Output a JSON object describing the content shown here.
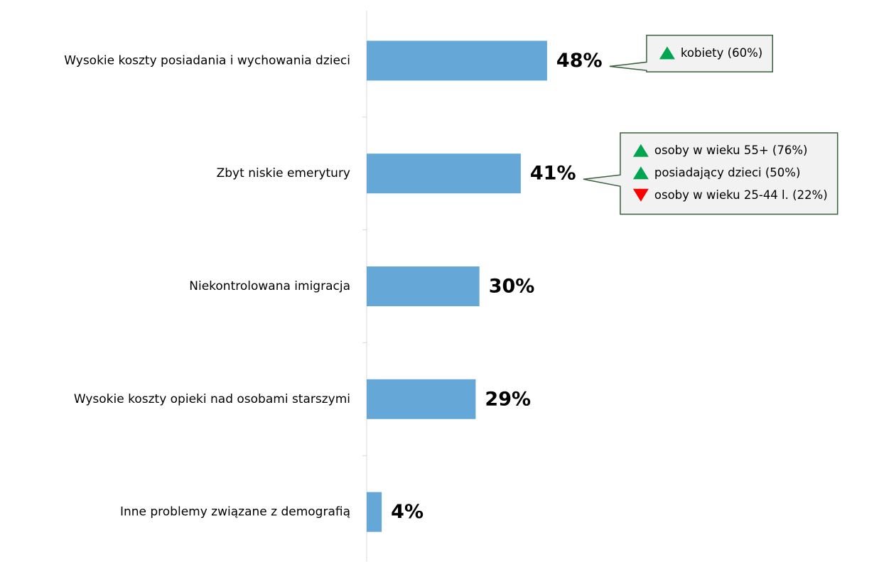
{
  "chart_data": {
    "type": "barh",
    "categories": [
      "Wysokie koszty posiadania i wychowania dzieci",
      "Zbyt niskie emerytury",
      "Niekontrolowana imigracja",
      "Wysokie koszty opieki nad osobami starszymi",
      "Inne problemy związane z demografią"
    ],
    "values": [
      48,
      41,
      30,
      29,
      4
    ],
    "value_labels": [
      "48%",
      "41%",
      "30%",
      "29%",
      "4%"
    ],
    "color": "#65a8d8",
    "xlim": [
      0,
      100
    ],
    "annotations": [
      {
        "items": [
          {
            "text": "kobiety (60%)",
            "direction": "up"
          }
        ]
      },
      {
        "items": [
          {
            "text": "osoby w wieku 55+ (76%)",
            "direction": "up"
          },
          {
            "text": "posiadający dzieci (50%)",
            "direction": "up"
          },
          {
            "text": "osoby w wieku 25-44 l. (22%)",
            "direction": "down"
          }
        ]
      },
      null,
      null,
      null
    ],
    "up_color": "#00a550",
    "down_color": "#ff0000"
  }
}
